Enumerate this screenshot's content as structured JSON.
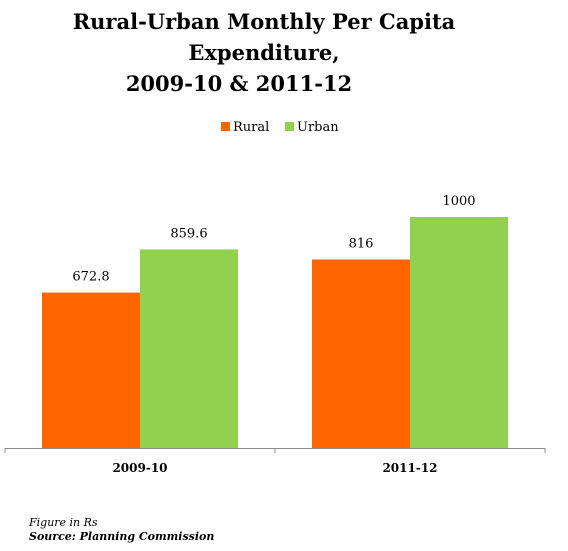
{
  "title_line1": "Rural-Urban Monthly Per Capita Expenditure,",
  "title_line2": "2009-10 & 2011-12",
  "chart_data": {
    "type": "bar",
    "title": "Rural-Urban Monthly Per Capita Expenditure, 2009-10 & 2011-12",
    "categories": [
      "2009-10",
      "2011-12"
    ],
    "series": [
      {
        "name": "Rural",
        "values": [
          672.8,
          816
        ],
        "labels": [
          "672.8",
          "816"
        ],
        "color": "#ff6600"
      },
      {
        "name": "Urban",
        "values": [
          859.6,
          1000
        ],
        "labels": [
          "859.6",
          "1000"
        ],
        "color": "#92d050"
      }
    ],
    "ylim": [
      0,
      1000
    ],
    "grid": false,
    "legend_position": "top-center"
  },
  "note_unit": "Figure in Rs",
  "note_source": "Source: Planning Commission"
}
